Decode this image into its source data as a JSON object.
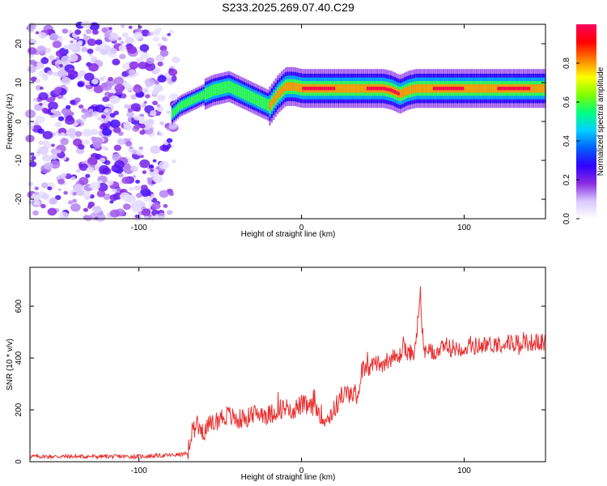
{
  "title": "S233.2025.269.07.40.C29",
  "chart_data": [
    {
      "type": "heatmap",
      "xlabel": "Height of straight line (km)",
      "ylabel": "Frequency (Hz)",
      "xlim": [
        -167,
        150
      ],
      "ylim": [
        -25,
        25
      ],
      "xticks": [
        -100,
        0,
        100
      ],
      "yticks": [
        -20,
        -10,
        0,
        10,
        20
      ],
      "colorbar": {
        "label": "Normalized spectral amplitude",
        "range": [
          0,
          1
        ],
        "ticks": [
          0.0,
          0.2,
          0.4,
          0.6,
          0.8
        ],
        "tick_labels": [
          "0.0",
          "0.2",
          "0.4",
          "0.6",
          "0.8"
        ],
        "colormap": [
          "#ffffff",
          "#d8c8ff",
          "#8a2be2",
          "#3000ff",
          "#0060ff",
          "#00d0ff",
          "#00ff80",
          "#80ff00",
          "#ffff00",
          "#ff8000",
          "#ff0000",
          "#ff0060"
        ]
      },
      "ridge": {
        "x": [
          -80,
          -75,
          -70,
          -65,
          -60,
          -55,
          -50,
          -45,
          -40,
          -35,
          -30,
          -25,
          -20,
          -15,
          -10,
          -5,
          0,
          10,
          20,
          30,
          40,
          50,
          55,
          60,
          65,
          70,
          80,
          90,
          100,
          110,
          120,
          130,
          140,
          150
        ],
        "frequency": [
          2,
          4,
          5,
          6,
          7,
          8,
          8.5,
          9,
          8,
          7,
          6,
          5,
          4,
          7,
          9,
          9,
          8.5,
          8.5,
          8.5,
          8.5,
          8.5,
          8.5,
          8,
          7,
          8,
          8.5,
          8.5,
          8.5,
          8.5,
          8.5,
          8.5,
          8.5,
          8.5,
          8.5
        ]
      },
      "noise_region_x": [
        -167,
        -75
      ]
    },
    {
      "type": "line",
      "xlabel": "Height of straight line (km)",
      "ylabel": "SNR (10 * v/v)",
      "xlim": [
        -167,
        150
      ],
      "ylim": [
        0,
        750
      ],
      "xticks": [
        -100,
        0,
        100
      ],
      "yticks": [
        0,
        200,
        400,
        600
      ],
      "color": "#e83030",
      "series": {
        "x": [
          -167,
          -140,
          -100,
          -80,
          -70,
          -67,
          -65,
          -60,
          -50,
          -45,
          -40,
          -35,
          -30,
          -25,
          -20,
          -15,
          -10,
          -5,
          0,
          5,
          10,
          15,
          20,
          25,
          30,
          35,
          37,
          40,
          45,
          50,
          55,
          60,
          63,
          65,
          67,
          70,
          73,
          75,
          80,
          90,
          100,
          110,
          120,
          130,
          140,
          150
        ],
        "snr": [
          20,
          20,
          20,
          25,
          30,
          120,
          150,
          120,
          170,
          180,
          160,
          170,
          180,
          190,
          180,
          200,
          210,
          200,
          220,
          210,
          200,
          160,
          200,
          260,
          260,
          260,
          360,
          350,
          380,
          380,
          400,
          400,
          460,
          410,
          420,
          430,
          660,
          420,
          420,
          440,
          440,
          450,
          455,
          460,
          460,
          460
        ]
      }
    }
  ]
}
